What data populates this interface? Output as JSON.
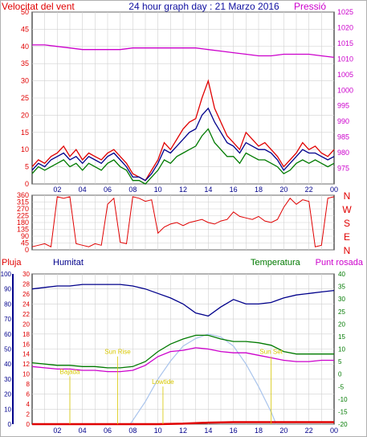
{
  "header": {
    "left_title": "Velocitat del vent",
    "center_title": "24 hour graph day : 21 Marzo 2016",
    "right_title": "Pressió"
  },
  "colors": {
    "red": "#e00000",
    "blue": "#00008b",
    "green": "#007a00",
    "magenta": "#cc00cc",
    "sky": "#a9c4ec",
    "yellow": "#d8c800",
    "grid": "#d0d0d0"
  },
  "time_ticks": [
    "02",
    "04",
    "06",
    "08",
    "10",
    "12",
    "14",
    "16",
    "18",
    "20",
    "22",
    "00"
  ],
  "chart_data": [
    {
      "type": "line",
      "panel": "wind",
      "x_unit": "hour",
      "xlim": [
        0,
        24
      ],
      "ylim": [
        0,
        50
      ],
      "y_ticks": [
        0,
        5,
        10,
        15,
        20,
        25,
        30,
        35,
        40,
        45,
        50
      ],
      "y2lim": [
        970,
        1025
      ],
      "y2_ticks": [
        975,
        980,
        985,
        990,
        995,
        1000,
        1005,
        1010,
        1015,
        1020,
        1025
      ],
      "ylabel": "Velocitat del vent",
      "y2label": "Pressió",
      "series": [
        {
          "axis": "y",
          "color": "red",
          "x": [
            0,
            0.5,
            1,
            1.5,
            2,
            2.5,
            3,
            3.5,
            4,
            4.5,
            5,
            5.5,
            6,
            6.5,
            7,
            7.5,
            8,
            8.5,
            9,
            9.5,
            10,
            10.5,
            11,
            11.5,
            12,
            12.5,
            13,
            13.5,
            14,
            14.5,
            15,
            15.5,
            16,
            16.5,
            17,
            17.5,
            18,
            18.5,
            19,
            19.5,
            20,
            20.5,
            21,
            21.5,
            22,
            22.5,
            23,
            23.5,
            24
          ],
          "values": [
            5,
            7,
            6,
            8,
            9,
            11,
            8,
            10,
            7,
            9,
            8,
            7,
            9,
            10,
            8,
            6,
            3,
            2,
            1,
            4,
            7,
            12,
            10,
            13,
            16,
            18,
            19,
            25,
            30,
            22,
            18,
            14,
            12,
            10,
            15,
            13,
            11,
            12,
            10,
            8,
            5,
            7,
            9,
            12,
            10,
            11,
            9,
            8,
            10
          ]
        },
        {
          "axis": "y",
          "color": "blue",
          "x": [
            0,
            0.5,
            1,
            1.5,
            2,
            2.5,
            3,
            3.5,
            4,
            4.5,
            5,
            5.5,
            6,
            6.5,
            7,
            7.5,
            8,
            8.5,
            9,
            9.5,
            10,
            10.5,
            11,
            11.5,
            12,
            12.5,
            13,
            13.5,
            14,
            14.5,
            15,
            15.5,
            16,
            16.5,
            17,
            17.5,
            18,
            18.5,
            19,
            19.5,
            20,
            20.5,
            21,
            21.5,
            22,
            22.5,
            23,
            23.5,
            24
          ],
          "values": [
            4,
            6,
            5,
            7,
            8,
            9,
            7,
            8,
            6,
            8,
            7,
            6,
            8,
            9,
            7,
            5,
            2,
            2,
            1,
            3,
            6,
            10,
            9,
            11,
            13,
            15,
            16,
            20,
            22,
            18,
            15,
            12,
            11,
            9,
            12,
            11,
            10,
            10,
            9,
            7,
            4,
            6,
            8,
            10,
            9,
            9,
            8,
            7,
            8
          ]
        },
        {
          "axis": "y",
          "color": "green",
          "x": [
            0,
            0.5,
            1,
            1.5,
            2,
            2.5,
            3,
            3.5,
            4,
            4.5,
            5,
            5.5,
            6,
            6.5,
            7,
            7.5,
            8,
            8.5,
            9,
            9.5,
            10,
            10.5,
            11,
            11.5,
            12,
            12.5,
            13,
            13.5,
            14,
            14.5,
            15,
            15.5,
            16,
            16.5,
            17,
            17.5,
            18,
            18.5,
            19,
            19.5,
            20,
            20.5,
            21,
            21.5,
            22,
            22.5,
            23,
            23.5,
            24
          ],
          "values": [
            3,
            5,
            4,
            5,
            6,
            7,
            5,
            6,
            4,
            6,
            5,
            4,
            6,
            7,
            5,
            4,
            1,
            1,
            0,
            2,
            4,
            7,
            6,
            8,
            9,
            10,
            11,
            14,
            16,
            12,
            10,
            8,
            8,
            6,
            9,
            8,
            7,
            7,
            6,
            5,
            3,
            4,
            6,
            7,
            6,
            7,
            6,
            5,
            6
          ]
        },
        {
          "axis": "y2",
          "color": "magenta",
          "x": [
            0,
            1,
            2,
            3,
            4,
            5,
            6,
            7,
            8,
            9,
            10,
            11,
            12,
            13,
            14,
            15,
            16,
            17,
            18,
            19,
            20,
            21,
            22,
            23,
            24
          ],
          "values": [
            1014.5,
            1014.5,
            1014.0,
            1013.5,
            1013.0,
            1013.0,
            1013.0,
            1013.0,
            1013.5,
            1013.5,
            1013.5,
            1013.5,
            1013.5,
            1013.5,
            1013.0,
            1012.5,
            1012.0,
            1011.5,
            1011.0,
            1011.0,
            1011.5,
            1011.5,
            1011.5,
            1011.0,
            1010.5
          ]
        }
      ]
    },
    {
      "type": "line",
      "panel": "direction",
      "x_unit": "hour",
      "xlim": [
        0,
        24
      ],
      "ylim": [
        0,
        360
      ],
      "y_ticks": [
        0,
        45,
        90,
        135,
        180,
        225,
        270,
        315,
        360
      ],
      "y2_labels": [
        "N",
        "W",
        "S",
        "E",
        "N"
      ],
      "series": [
        {
          "color": "red",
          "x": [
            0,
            0.5,
            1,
            1.5,
            2,
            2.5,
            3,
            3.5,
            4,
            4.5,
            5,
            5.5,
            6,
            6.5,
            7,
            7.5,
            8,
            8.5,
            9,
            9.5,
            10,
            10.5,
            11,
            11.5,
            12,
            12.5,
            13,
            13.5,
            14,
            14.5,
            15,
            15.5,
            16,
            16.5,
            17,
            17.5,
            18,
            18.5,
            19,
            19.5,
            20,
            20.5,
            21,
            21.5,
            22,
            22.5,
            23,
            23.5,
            24
          ],
          "values": [
            20,
            30,
            40,
            20,
            350,
            340,
            350,
            40,
            30,
            20,
            40,
            30,
            300,
            340,
            50,
            40,
            350,
            340,
            320,
            330,
            110,
            150,
            170,
            180,
            160,
            180,
            190,
            200,
            180,
            170,
            190,
            200,
            250,
            220,
            210,
            200,
            220,
            190,
            180,
            200,
            280,
            340,
            300,
            330,
            320,
            20,
            30,
            340,
            350
          ]
        }
      ]
    },
    {
      "type": "line",
      "panel": "weather",
      "x_unit": "hour",
      "xlim": [
        0,
        24
      ],
      "ylabel_rain": "Pluja",
      "ylabel_humidity": "Humitat",
      "ylabel_temp": "Temperatura",
      "ylabel_dew": "Punt rosada",
      "humidity_lim": [
        0,
        100
      ],
      "humidity_ticks": [
        0,
        10,
        20,
        30,
        40,
        50,
        60,
        70,
        80,
        90,
        100
      ],
      "rain_lim": [
        0,
        30
      ],
      "rain_ticks": [
        0,
        2,
        4,
        6,
        8,
        10,
        12,
        14,
        16,
        18,
        20,
        22,
        24,
        26,
        28,
        30
      ],
      "temp_lim": [
        -20,
        40
      ],
      "temp_ticks": [
        -20,
        -15,
        -10,
        -5,
        0,
        5,
        10,
        15,
        20,
        25,
        30,
        35,
        40
      ],
      "series": [
        {
          "name": "Humitat",
          "axis": "humidity",
          "color": "blue",
          "x": [
            0,
            1,
            2,
            3,
            4,
            5,
            6,
            7,
            8,
            9,
            10,
            11,
            12,
            13,
            14,
            15,
            16,
            17,
            18,
            19,
            20,
            21,
            22,
            23,
            24
          ],
          "values": [
            90,
            91,
            92,
            92,
            93,
            93,
            93,
            93,
            92,
            90,
            87,
            84,
            80,
            74,
            72,
            78,
            83,
            80,
            80,
            81,
            84,
            86,
            87,
            88,
            89
          ]
        },
        {
          "name": "Temperatura",
          "axis": "temp",
          "color": "green",
          "x": [
            0,
            1,
            2,
            3,
            4,
            5,
            6,
            7,
            8,
            9,
            10,
            11,
            12,
            13,
            14,
            15,
            16,
            17,
            18,
            19,
            20,
            21,
            22,
            23,
            24
          ],
          "values": [
            4.5,
            4.0,
            3.5,
            3.5,
            3.0,
            3.0,
            2.5,
            2.5,
            3.0,
            5.0,
            9.0,
            12.0,
            14.0,
            15.5,
            15.5,
            14.0,
            13.0,
            13.0,
            12.5,
            11.5,
            9.0,
            8.0,
            8.0,
            8.0,
            8.0
          ]
        },
        {
          "name": "Punt rosada",
          "axis": "temp",
          "color": "magenta",
          "x": [
            0,
            1,
            2,
            3,
            4,
            5,
            6,
            7,
            8,
            9,
            10,
            11,
            12,
            13,
            14,
            15,
            16,
            17,
            18,
            19,
            20,
            21,
            22,
            23,
            24
          ],
          "values": [
            3.0,
            2.5,
            2.0,
            2.0,
            1.5,
            1.5,
            1.0,
            1.0,
            1.5,
            3.5,
            7.0,
            9.0,
            9.5,
            10.5,
            10.0,
            9.0,
            8.5,
            8.5,
            7.5,
            6.5,
            5.5,
            5.0,
            5.0,
            5.5,
            5.5
          ]
        },
        {
          "name": "Pluja",
          "axis": "rain",
          "color": "red",
          "x": [
            0,
            8,
            10,
            12,
            14,
            16,
            18,
            20,
            22,
            24
          ],
          "values": [
            0,
            0,
            0,
            0.1,
            0.3,
            0.4,
            0.4,
            0.4,
            0.4,
            0.4
          ]
        }
      ],
      "sun_arc": {
        "color": "sky",
        "x": [
          7.8,
          9,
          10,
          11,
          12,
          13,
          14,
          15,
          16,
          17,
          18,
          19,
          19.4
        ],
        "values": [
          0,
          15,
          30,
          42,
          52,
          57,
          60,
          58,
          52,
          40,
          25,
          8,
          0
        ]
      },
      "annotations": [
        {
          "label": "Bajada",
          "x": 3.0,
          "y": 10
        },
        {
          "label": "Sun Rise",
          "x": 6.8,
          "y": 14
        },
        {
          "label": "Lowtide",
          "x": 10.4,
          "y": 8
        },
        {
          "label": "Sun Set",
          "x": 19.0,
          "y": 14
        }
      ]
    }
  ]
}
